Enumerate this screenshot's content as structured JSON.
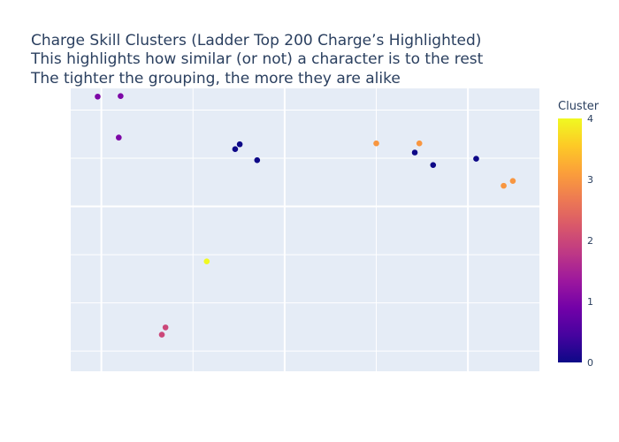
{
  "chart_data": {
    "type": "scatter",
    "title_lines": [
      "Charge Skill Clusters (Ladder Top 200 Charge’s Highlighted)",
      "This highlights how similar (or not) a character is to the rest",
      "The tighter the grouping, the more they are alike"
    ],
    "xlabel": "",
    "ylabel": "",
    "xlim": [
      -1.67,
      23.9
    ],
    "ylim": [
      -0.42,
      5.45
    ],
    "xgrid": [
      0,
      10,
      20
    ],
    "xgrid_minor": [
      5,
      15
    ],
    "ygrid": [
      3
    ],
    "ygrid_minor": [
      0,
      1,
      2,
      4,
      5
    ],
    "grid": true,
    "colorbar": {
      "title": "Cluster",
      "min": 0,
      "max": 4,
      "ticks": [
        0,
        1,
        2,
        3,
        4
      ],
      "colorscale": [
        "#0d0887",
        "#46039f",
        "#7201a8",
        "#9c179e",
        "#bd3786",
        "#d8576b",
        "#ed7953",
        "#fb9f3a",
        "#fdca26",
        "#f0f921"
      ]
    },
    "points": [
      {
        "x": -0.2,
        "y": 5.28,
        "cluster": 1
      },
      {
        "x": 1.05,
        "y": 5.29,
        "cluster": 1
      },
      {
        "x": 0.95,
        "y": 4.43,
        "cluster": 1
      },
      {
        "x": 7.3,
        "y": 4.19,
        "cluster": 0
      },
      {
        "x": 7.55,
        "y": 4.29,
        "cluster": 0
      },
      {
        "x": 8.5,
        "y": 3.96,
        "cluster": 0
      },
      {
        "x": 17.1,
        "y": 4.12,
        "cluster": 0
      },
      {
        "x": 18.1,
        "y": 3.86,
        "cluster": 0
      },
      {
        "x": 20.45,
        "y": 3.99,
        "cluster": 0
      },
      {
        "x": 15.0,
        "y": 4.31,
        "cluster": 3
      },
      {
        "x": 17.35,
        "y": 4.31,
        "cluster": 3
      },
      {
        "x": 21.95,
        "y": 3.43,
        "cluster": 3
      },
      {
        "x": 22.45,
        "y": 3.53,
        "cluster": 3
      },
      {
        "x": 5.75,
        "y": 1.86,
        "cluster": 4
      },
      {
        "x": 3.5,
        "y": 0.49,
        "cluster": 2
      },
      {
        "x": 3.3,
        "y": 0.34,
        "cluster": 2
      }
    ]
  }
}
